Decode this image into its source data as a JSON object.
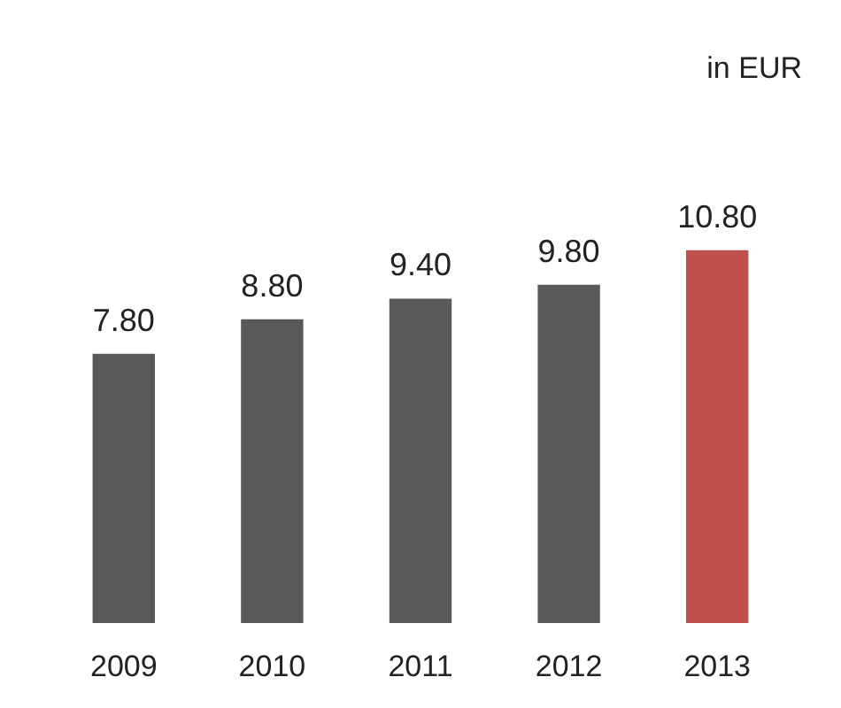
{
  "chart_data": {
    "type": "bar",
    "annotations": [
      "in EUR"
    ],
    "categories": [
      "2009",
      "2010",
      "2011",
      "2012",
      "2013"
    ],
    "values": [
      7.8,
      8.8,
      9.4,
      9.8,
      10.8
    ],
    "value_labels": [
      "7.80",
      "8.80",
      "9.40",
      "9.80",
      "10.80"
    ],
    "colors": [
      "#595959",
      "#595959",
      "#595959",
      "#595959",
      "#c0504d"
    ]
  }
}
